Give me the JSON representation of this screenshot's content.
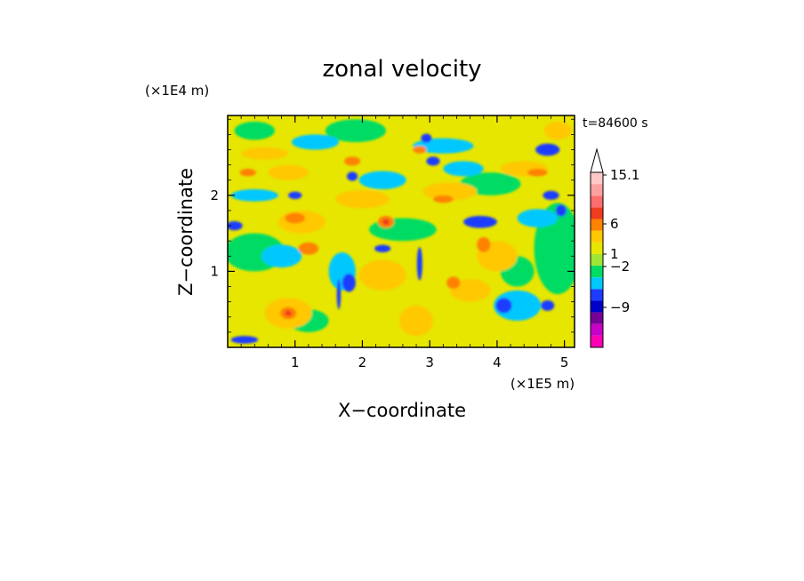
{
  "chart_data": {
    "type": "heatmap",
    "title": "zonal velocity",
    "xlabel": "X−coordinate",
    "ylabel": "Z−coordinate",
    "x_unit": "(×1E5 m)",
    "y_unit": "(×1E4 m)",
    "time_label": "t=84600 s",
    "xlim": [
      0,
      5.15
    ],
    "ylim": [
      0,
      3.05
    ],
    "x_ticks": [
      1,
      2,
      3,
      4,
      5
    ],
    "x_tick_labels": [
      "1",
      "2",
      "3",
      "4",
      "5"
    ],
    "y_ticks": [
      1,
      2
    ],
    "y_tick_labels": [
      "1",
      "2"
    ],
    "colorbar": {
      "labels": [
        "15.1",
        "6",
        "1",
        "−2",
        "−9"
      ],
      "label_values": [
        15.1,
        6,
        1,
        -2,
        -9
      ],
      "colors": [
        "#ff00b4",
        "#c800c8",
        "#780096",
        "#0000c8",
        "#1e3cff",
        "#00c8ff",
        "#00dc64",
        "#a0e632",
        "#e6e600",
        "#ffc800",
        "#ff8200",
        "#f03c1e",
        "#ff6e6e",
        "#ffa0a0",
        "#ffc8c8"
      ],
      "extend_top_color": "#ffffff"
    },
    "background_color": "#e6e600",
    "blobs": [
      {
        "x": 4.75,
        "z": 2.6,
        "rx": 0.18,
        "rz": 0.08,
        "level": -9,
        "color": "#1e3cff"
      },
      {
        "x": 1.8,
        "z": 0.85,
        "rx": 0.1,
        "rz": 0.12,
        "level": -9,
        "color": "#1e3cff"
      },
      {
        "x": 3.05,
        "z": 2.45,
        "rx": 0.1,
        "rz": 0.06,
        "level": -5,
        "color": "#1e3cff"
      },
      {
        "x": 0.1,
        "z": 1.6,
        "rx": 0.12,
        "rz": 0.06,
        "level": -5,
        "color": "#1e3cff"
      },
      {
        "x": 2.3,
        "z": 1.3,
        "rx": 0.12,
        "rz": 0.05,
        "level": -5,
        "color": "#1e3cff"
      },
      {
        "x": 4.1,
        "z": 0.55,
        "rx": 0.12,
        "rz": 0.1,
        "level": -5,
        "color": "#1e3cff"
      },
      {
        "x": 4.75,
        "z": 0.55,
        "rx": 0.1,
        "rz": 0.07,
        "level": -5,
        "color": "#1e3cff"
      },
      {
        "x": 3.75,
        "z": 1.65,
        "rx": 0.25,
        "rz": 0.08,
        "level": -5,
        "color": "#1e3cff"
      },
      {
        "x": 4.95,
        "z": 1.8,
        "rx": 0.08,
        "rz": 0.08,
        "level": -5,
        "color": "#1e3cff"
      },
      {
        "x": 4.8,
        "z": 2.0,
        "rx": 0.12,
        "rz": 0.06,
        "level": -5,
        "color": "#1e3cff"
      },
      {
        "x": 1.85,
        "z": 2.25,
        "rx": 0.08,
        "rz": 0.06,
        "level": -5,
        "color": "#1e3cff"
      },
      {
        "x": 2.95,
        "z": 2.75,
        "rx": 0.08,
        "rz": 0.06,
        "level": -5,
        "color": "#1e3cff"
      },
      {
        "x": 1.0,
        "z": 2.0,
        "rx": 0.1,
        "rz": 0.05,
        "level": -5,
        "color": "#1e3cff"
      },
      {
        "x": 0.25,
        "z": 0.1,
        "rx": 0.2,
        "rz": 0.05,
        "level": -5,
        "color": "#1e3cff"
      },
      {
        "x": 1.65,
        "z": 0.7,
        "rx": 0.03,
        "rz": 0.2,
        "level": -5,
        "color": "#1e3cff"
      },
      {
        "x": 2.85,
        "z": 1.1,
        "rx": 0.04,
        "rz": 0.22,
        "level": -5,
        "color": "#1e3cff"
      },
      {
        "x": 0.8,
        "z": 1.2,
        "rx": 0.3,
        "rz": 0.15,
        "level": -2,
        "color": "#00c8ff"
      },
      {
        "x": 2.3,
        "z": 2.2,
        "rx": 0.35,
        "rz": 0.12,
        "level": -2,
        "color": "#00c8ff"
      },
      {
        "x": 3.5,
        "z": 2.35,
        "rx": 0.3,
        "rz": 0.1,
        "level": -2,
        "color": "#00c8ff"
      },
      {
        "x": 4.6,
        "z": 1.7,
        "rx": 0.3,
        "rz": 0.12,
        "level": -2,
        "color": "#00c8ff"
      },
      {
        "x": 3.2,
        "z": 2.65,
        "rx": 0.45,
        "rz": 0.1,
        "level": -2,
        "color": "#00c8ff"
      },
      {
        "x": 4.3,
        "z": 0.55,
        "rx": 0.35,
        "rz": 0.2,
        "level": -2,
        "color": "#00c8ff"
      },
      {
        "x": 1.3,
        "z": 2.7,
        "rx": 0.35,
        "rz": 0.1,
        "level": -2,
        "color": "#00c8ff"
      },
      {
        "x": 0.4,
        "z": 2.0,
        "rx": 0.35,
        "rz": 0.08,
        "level": -2,
        "color": "#00c8ff"
      },
      {
        "x": 1.7,
        "z": 1.0,
        "rx": 0.2,
        "rz": 0.25,
        "level": -2,
        "color": "#00c8ff"
      },
      {
        "x": 0.4,
        "z": 2.85,
        "rx": 0.3,
        "rz": 0.12,
        "level": 0,
        "color": "#00dc64"
      },
      {
        "x": 1.9,
        "z": 2.85,
        "rx": 0.45,
        "rz": 0.15,
        "level": 0,
        "color": "#00dc64"
      },
      {
        "x": 4.9,
        "z": 1.3,
        "rx": 0.35,
        "rz": 0.6,
        "level": 0,
        "color": "#00dc64"
      },
      {
        "x": 0.4,
        "z": 1.25,
        "rx": 0.45,
        "rz": 0.25,
        "level": 0,
        "color": "#00dc64"
      },
      {
        "x": 2.6,
        "z": 1.55,
        "rx": 0.5,
        "rz": 0.15,
        "level": 0,
        "color": "#00dc64"
      },
      {
        "x": 3.9,
        "z": 2.15,
        "rx": 0.45,
        "rz": 0.15,
        "level": 0,
        "color": "#00dc64"
      },
      {
        "x": 1.2,
        "z": 0.35,
        "rx": 0.3,
        "rz": 0.15,
        "level": 0,
        "color": "#00dc64"
      },
      {
        "x": 4.3,
        "z": 1.0,
        "rx": 0.25,
        "rz": 0.2,
        "level": 0,
        "color": "#00dc64"
      },
      {
        "x": 1.1,
        "z": 1.65,
        "rx": 0.35,
        "rz": 0.15,
        "level": 4,
        "color": "#ffc800"
      },
      {
        "x": 0.9,
        "z": 2.3,
        "rx": 0.3,
        "rz": 0.1,
        "level": 4,
        "color": "#ffc800"
      },
      {
        "x": 3.3,
        "z": 2.05,
        "rx": 0.4,
        "rz": 0.12,
        "level": 4,
        "color": "#ffc800"
      },
      {
        "x": 4.4,
        "z": 2.35,
        "rx": 0.35,
        "rz": 0.1,
        "level": 4,
        "color": "#ffc800"
      },
      {
        "x": 0.9,
        "z": 0.45,
        "rx": 0.35,
        "rz": 0.2,
        "level": 4,
        "color": "#ffc800"
      },
      {
        "x": 2.3,
        "z": 0.95,
        "rx": 0.35,
        "rz": 0.2,
        "level": 4,
        "color": "#ffc800"
      },
      {
        "x": 3.6,
        "z": 0.75,
        "rx": 0.3,
        "rz": 0.15,
        "level": 4,
        "color": "#ffc800"
      },
      {
        "x": 4.0,
        "z": 1.2,
        "rx": 0.3,
        "rz": 0.2,
        "level": 4,
        "color": "#ffc800"
      },
      {
        "x": 2.0,
        "z": 1.95,
        "rx": 0.4,
        "rz": 0.12,
        "level": 4,
        "color": "#ffc800"
      },
      {
        "x": 0.55,
        "z": 2.55,
        "rx": 0.35,
        "rz": 0.08,
        "level": 4,
        "color": "#ffc800"
      },
      {
        "x": 4.9,
        "z": 2.85,
        "rx": 0.2,
        "rz": 0.12,
        "level": 4,
        "color": "#ffc800"
      },
      {
        "x": 2.8,
        "z": 0.35,
        "rx": 0.25,
        "rz": 0.2,
        "level": 4,
        "color": "#ffc800"
      },
      {
        "x": 1.0,
        "z": 1.7,
        "rx": 0.15,
        "rz": 0.07,
        "level": 6,
        "color": "#ff8200"
      },
      {
        "x": 0.9,
        "z": 0.45,
        "rx": 0.12,
        "rz": 0.08,
        "level": 6,
        "color": "#ff8200"
      },
      {
        "x": 2.35,
        "z": 1.65,
        "rx": 0.12,
        "rz": 0.08,
        "level": 6,
        "color": "#ff8200"
      },
      {
        "x": 3.2,
        "z": 1.95,
        "rx": 0.15,
        "rz": 0.05,
        "level": 6,
        "color": "#ff8200"
      },
      {
        "x": 2.85,
        "z": 2.6,
        "rx": 0.1,
        "rz": 0.05,
        "level": 6,
        "color": "#ff8200"
      },
      {
        "x": 3.8,
        "z": 1.35,
        "rx": 0.1,
        "rz": 0.1,
        "level": 6,
        "color": "#ff8200"
      },
      {
        "x": 4.6,
        "z": 2.3,
        "rx": 0.15,
        "rz": 0.05,
        "level": 6,
        "color": "#ff8200"
      },
      {
        "x": 0.3,
        "z": 2.3,
        "rx": 0.12,
        "rz": 0.05,
        "level": 6,
        "color": "#ff8200"
      },
      {
        "x": 1.2,
        "z": 1.3,
        "rx": 0.15,
        "rz": 0.08,
        "level": 6,
        "color": "#ff8200"
      },
      {
        "x": 3.35,
        "z": 0.85,
        "rx": 0.1,
        "rz": 0.08,
        "level": 6,
        "color": "#ff8200"
      },
      {
        "x": 1.85,
        "z": 2.45,
        "rx": 0.12,
        "rz": 0.06,
        "level": 6,
        "color": "#ff8200"
      },
      {
        "x": 0.9,
        "z": 0.45,
        "rx": 0.05,
        "rz": 0.04,
        "level": 9,
        "color": "#f03c1e"
      },
      {
        "x": 2.35,
        "z": 1.65,
        "rx": 0.05,
        "rz": 0.04,
        "level": 9,
        "color": "#f03c1e"
      }
    ]
  }
}
